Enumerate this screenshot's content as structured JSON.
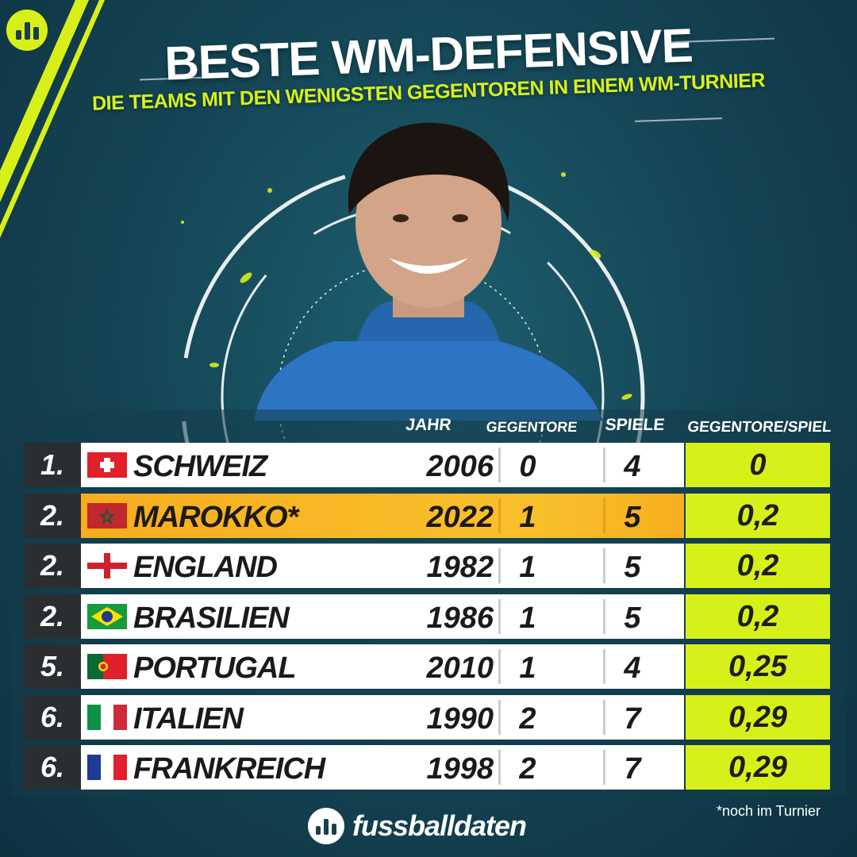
{
  "title": "BESTE WM-DEFENSIVE",
  "subtitle": "DIE TEAMS MIT DEN WENIGSTEN GEGENTOREN IN EINEM WM-TURNIER",
  "colors": {
    "accent": "#d8f01a",
    "highlight": "#f6ad1e",
    "rank_bg": "#2b2e30",
    "background": "#154757"
  },
  "icons": {
    "corner_logo": "bar-chart-logo-icon",
    "brand_logo": "bar-chart-logo-icon"
  },
  "chart_data": {
    "type": "table",
    "columns": [
      "JAHR",
      "GEGENTORE",
      "SPIELE",
      "GEGENTORE/SPIEL"
    ],
    "rows": [
      {
        "rank": "1.",
        "flag": "switzerland-flag-icon",
        "team": "SCHWEIZ",
        "year": "2006",
        "goals": "0",
        "games": "4",
        "ratio": "0",
        "highlight": false
      },
      {
        "rank": "2.",
        "flag": "morocco-flag-icon",
        "team": "MAROKKO*",
        "year": "2022",
        "goals": "1",
        "games": "5",
        "ratio": "0,2",
        "highlight": true
      },
      {
        "rank": "2.",
        "flag": "england-flag-icon",
        "team": "ENGLAND",
        "year": "1982",
        "goals": "1",
        "games": "5",
        "ratio": "0,2",
        "highlight": false
      },
      {
        "rank": "2.",
        "flag": "brazil-flag-icon",
        "team": "BRASILIEN",
        "year": "1986",
        "goals": "1",
        "games": "5",
        "ratio": "0,2",
        "highlight": false
      },
      {
        "rank": "5.",
        "flag": "portugal-flag-icon",
        "team": "PORTUGAL",
        "year": "2010",
        "goals": "1",
        "games": "4",
        "ratio": "0,25",
        "highlight": false
      },
      {
        "rank": "6.",
        "flag": "italy-flag-icon",
        "team": "ITALIEN",
        "year": "1990",
        "goals": "2",
        "games": "7",
        "ratio": "0,29",
        "highlight": false
      },
      {
        "rank": "6.",
        "flag": "france-flag-icon",
        "team": "FRANKREICH",
        "year": "1998",
        "goals": "2",
        "games": "7",
        "ratio": "0,29",
        "highlight": false
      }
    ]
  },
  "footnote": "*noch im Turnier",
  "brand": "fussballdaten"
}
